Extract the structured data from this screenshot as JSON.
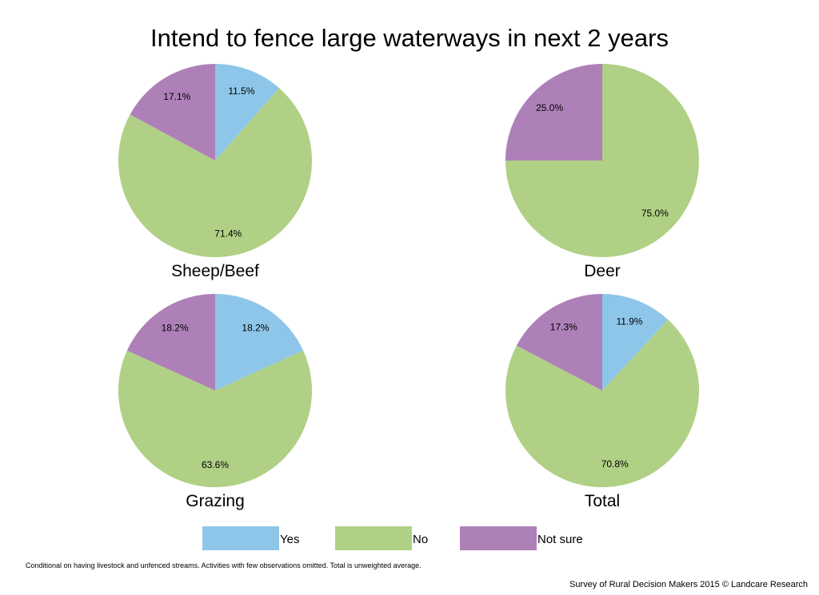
{
  "chart_data": {
    "type": "pie",
    "title": "Intend to fence large waterways in next 2 years",
    "legend": {
      "placement": "bottom",
      "entries": [
        "Yes",
        "No",
        "Not sure"
      ]
    },
    "colors": {
      "Yes": "#8EC6EA",
      "No": "#B0D085",
      "Not sure": "#AE80B8"
    },
    "pies": [
      {
        "name": "Sheep/Beef",
        "slices": [
          {
            "label": "Yes",
            "value": 11.5,
            "text": "11.5%"
          },
          {
            "label": "No",
            "value": 71.4,
            "text": "71.4%"
          },
          {
            "label": "Not sure",
            "value": 17.1,
            "text": "17.1%"
          }
        ]
      },
      {
        "name": "Deer",
        "slices": [
          {
            "label": "Yes",
            "value": 0,
            "text": ""
          },
          {
            "label": "No",
            "value": 75.0,
            "text": "75.0%"
          },
          {
            "label": "Not sure",
            "value": 25.0,
            "text": "25.0%"
          }
        ]
      },
      {
        "name": "Grazing",
        "slices": [
          {
            "label": "Yes",
            "value": 18.2,
            "text": "18.2%"
          },
          {
            "label": "No",
            "value": 63.6,
            "text": "63.6%"
          },
          {
            "label": "Not sure",
            "value": 18.2,
            "text": "18.2%"
          }
        ]
      },
      {
        "name": "Total",
        "slices": [
          {
            "label": "Yes",
            "value": 11.9,
            "text": "11.9%"
          },
          {
            "label": "No",
            "value": 70.8,
            "text": "70.8%"
          },
          {
            "label": "Not sure",
            "value": 17.3,
            "text": "17.3%"
          }
        ]
      }
    ]
  },
  "footnote": "Conditional on having livestock and unfenced streams. Activities with few observations omitted. Total is unweighted average.",
  "credit": "Survey of Rural Decision Makers 2015 © Landcare Research"
}
